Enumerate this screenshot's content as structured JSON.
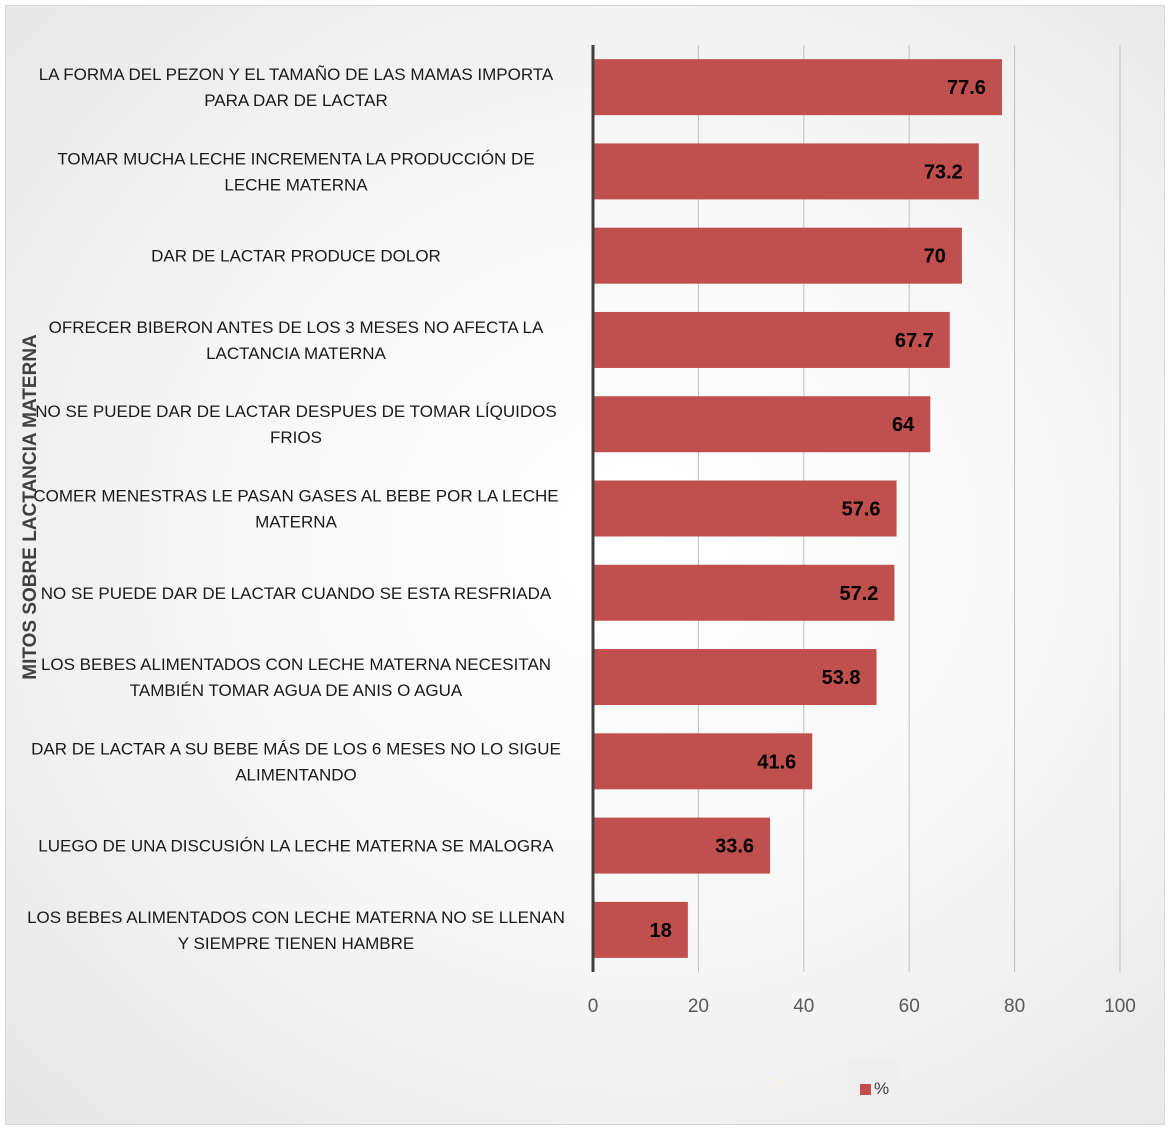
{
  "colors": {
    "bar": "#c0504d",
    "axis": "#404040",
    "grid": "#bfbfbf"
  },
  "legend": {
    "ghost_label": "%",
    "series_label": "%"
  },
  "chart_data": {
    "type": "bar",
    "orientation": "horizontal",
    "title": "",
    "xlabel": "",
    "ylabel": "MITOS SOBRE LACTANCIA MATERNA",
    "xlim": [
      0,
      100
    ],
    "xticks": [
      0,
      20,
      40,
      60,
      80,
      100
    ],
    "grid": true,
    "legend_position": "bottom",
    "categories": [
      [
        "LA FORMA DEL PEZON Y EL TAMAÑO DE LAS MAMAS IMPORTA",
        "PARA DAR DE LACTAR"
      ],
      [
        "TOMAR MUCHA LECHE INCREMENTA LA PRODUCCIÓN DE",
        "LECHE MATERNA"
      ],
      [
        "DAR DE LACTAR PRODUCE DOLOR"
      ],
      [
        "OFRECER BIBERON ANTES DE LOS 3 MESES NO AFECTA LA",
        "LACTANCIA MATERNA"
      ],
      [
        "NO SE PUEDE DAR DE LACTAR DESPUES DE TOMAR LÍQUIDOS",
        "FRIOS"
      ],
      [
        "COMER MENESTRAS LE PASAN GASES AL BEBE POR LA LECHE",
        "MATERNA"
      ],
      [
        "NO SE PUEDE DAR DE LACTAR CUANDO SE ESTA RESFRIADA"
      ],
      [
        "LOS BEBES ALIMENTADOS CON LECHE MATERNA NECESITAN",
        "TAMBIÉN TOMAR AGUA DE ANIS O AGUA"
      ],
      [
        "DAR DE LACTAR A SU BEBE MÁS DE LOS 6 MESES NO LO SIGUE",
        "ALIMENTANDO"
      ],
      [
        "LUEGO DE UNA DISCUSIÓN LA LECHE MATERNA SE MALOGRA"
      ],
      [
        "LOS BEBES ALIMENTADOS CON LECHE MATERNA NO SE LLENAN",
        "Y SIEMPRE TIENEN HAMBRE"
      ]
    ],
    "series": [
      {
        "name": "%",
        "values": [
          77.6,
          73.2,
          70,
          67.7,
          64,
          57.6,
          57.2,
          53.8,
          41.6,
          33.6,
          18
        ],
        "labels": [
          "77.6",
          "73.2",
          "70",
          "67.7",
          "64",
          "57.6",
          "57.2",
          "53.8",
          "41.6",
          "33.6",
          "18"
        ]
      }
    ]
  }
}
